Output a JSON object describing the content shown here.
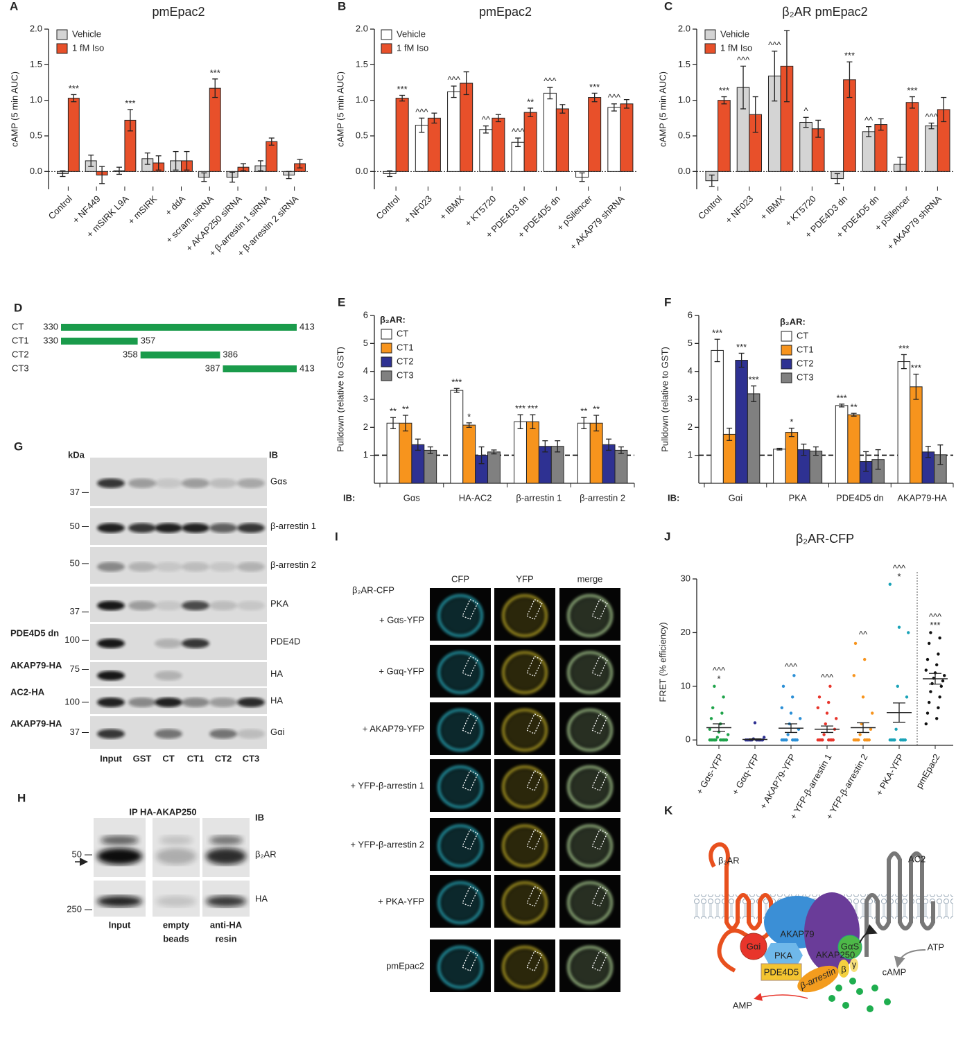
{
  "chart_data": [
    {
      "panel": "A",
      "type": "bar",
      "title": "pmEpac2",
      "y_label": "cAMP (5 min AUC)",
      "categories": [
        "Control",
        "+ NF449",
        "+ mSIRK L9A",
        "+ mSIRK",
        "+ ddA",
        "+ scram. siRNA",
        "+ AKAP250 siRNA",
        "+ β-arrestin 1 siRNA",
        "+ β-arrestin 2 siRNA"
      ],
      "ylim": [
        -0.25,
        2.0
      ],
      "yticks": [
        {
          "value": 0,
          "label": "0.0"
        },
        {
          "value": 0.5,
          "label": "0.5"
        },
        {
          "value": 1,
          "label": "1.0"
        },
        {
          "value": 1.5,
          "label": "1.5"
        },
        {
          "value": 2,
          "label": "2.0"
        }
      ],
      "reference_line": 0,
      "reference_style": "dotted",
      "series": [
        {
          "name": "Vehicle",
          "color": "#d4d4d4",
          "values": [
            -0.03,
            0.15,
            0.01,
            0.18,
            0.15,
            -0.08,
            -0.08,
            0.08,
            -0.05
          ],
          "errors": [
            0.04,
            0.08,
            0.05,
            0.08,
            0.13,
            0.06,
            0.07,
            0.07,
            0.05
          ],
          "annotations": [
            null,
            null,
            null,
            null,
            null,
            null,
            null,
            null,
            null
          ]
        },
        {
          "name": "1 fM Iso",
          "color": "#e8502a",
          "values": [
            1.03,
            -0.05,
            0.72,
            0.12,
            0.15,
            1.17,
            0.06,
            0.42,
            0.11
          ],
          "errors": [
            0.05,
            0.12,
            0.15,
            0.1,
            0.13,
            0.13,
            0.05,
            0.05,
            0.06
          ],
          "annotations": [
            "***",
            null,
            "***",
            null,
            null,
            "***",
            null,
            null,
            null
          ]
        }
      ]
    },
    {
      "panel": "B",
      "type": "bar",
      "title": "pmEpac2",
      "y_label": "cAMP (5 min AUC)",
      "categories": [
        "Control",
        "+ NF023",
        "+ IBMX",
        "+ KT5720",
        "+ PDE4D3 dn",
        "+ PDE4D5 dn",
        "+ pSilencer",
        "+ AKAP79 shRNA"
      ],
      "ylim": [
        -0.25,
        2.0
      ],
      "yticks": [
        {
          "value": 0,
          "label": "0.0"
        },
        {
          "value": 0.5,
          "label": "0.5"
        },
        {
          "value": 1,
          "label": "1.0"
        },
        {
          "value": 1.5,
          "label": "1.5"
        },
        {
          "value": 2,
          "label": "2.0"
        }
      ],
      "reference_line": 0,
      "reference_style": "dotted",
      "series": [
        {
          "name": "Vehicle",
          "color": "#ffffff",
          "values": [
            -0.03,
            0.65,
            1.12,
            0.59,
            0.41,
            1.1,
            -0.08,
            0.9
          ],
          "errors": [
            0.04,
            0.1,
            0.08,
            0.05,
            0.06,
            0.08,
            0.06,
            0.05
          ],
          "annotations": [
            null,
            "^^^",
            "^^^",
            "^^",
            "^^^",
            "^^^",
            null,
            "^^^"
          ]
        },
        {
          "name": "1 fM Iso",
          "color": "#e8502a",
          "values": [
            1.03,
            0.75,
            1.24,
            0.75,
            0.83,
            0.88,
            1.04,
            0.95
          ],
          "errors": [
            0.04,
            0.07,
            0.16,
            0.05,
            0.06,
            0.06,
            0.06,
            0.06
          ],
          "annotations": [
            "***",
            null,
            null,
            null,
            "**",
            null,
            "***",
            null
          ]
        }
      ]
    },
    {
      "panel": "C",
      "type": "bar",
      "title": "β₂AR pmEpac2",
      "y_label": "cAMP (5 min AUC)",
      "categories": [
        "Control",
        "+ NF023",
        "+ IBMX",
        "+ KT5720",
        "+ PDE4D3 dn",
        "+ PDE4D5 dn",
        "+ pSilencer",
        "+ AKAP79 shRNA"
      ],
      "ylim": [
        -0.25,
        2.0
      ],
      "yticks": [
        {
          "value": 0,
          "label": "0.0"
        },
        {
          "value": 0.5,
          "label": "0.5"
        },
        {
          "value": 1,
          "label": "1.0"
        },
        {
          "value": 1.5,
          "label": "1.5"
        },
        {
          "value": 2,
          "label": "2.0"
        }
      ],
      "reference_line": 0,
      "reference_style": "dotted",
      "series": [
        {
          "name": "Vehicle",
          "color": "#d4d4d4",
          "values": [
            -0.13,
            1.18,
            1.34,
            0.69,
            -0.1,
            0.56,
            0.1,
            0.64
          ],
          "errors": [
            0.08,
            0.3,
            0.35,
            0.07,
            0.07,
            0.07,
            0.1,
            0.04
          ],
          "annotations": [
            null,
            "^^^",
            "^^^",
            "^",
            null,
            "^^",
            null,
            "^^^"
          ]
        },
        {
          "name": "1 fM Iso",
          "color": "#e8502a",
          "values": [
            1.0,
            0.8,
            1.48,
            0.6,
            1.29,
            0.66,
            0.97,
            0.87
          ],
          "errors": [
            0.05,
            0.25,
            0.5,
            0.12,
            0.25,
            0.08,
            0.08,
            0.17
          ],
          "annotations": [
            "***",
            null,
            null,
            null,
            "***",
            null,
            "***",
            null
          ]
        }
      ]
    },
    {
      "panel": "E",
      "type": "bar",
      "y_label": "Pulldown (relative to GST)",
      "x_label": "IB:",
      "legend_title": "β₂AR:",
      "categories": [
        "Gαs",
        "HA-AC2",
        "β-arrestin 1",
        "β-arrestin 2"
      ],
      "ylim": [
        0,
        6
      ],
      "yticks": [
        1,
        2,
        3,
        4,
        5,
        6
      ],
      "reference_line": 1,
      "reference_style": "dashed",
      "series": [
        {
          "name": "CT",
          "color": "#ffffff",
          "values": [
            2.15,
            3.32,
            2.2,
            2.15
          ],
          "errors": [
            0.2,
            0.07,
            0.25,
            0.2
          ],
          "annotations": [
            "**",
            "***",
            "***",
            "**"
          ]
        },
        {
          "name": "CT1",
          "color": "#f7941d",
          "values": [
            2.15,
            2.08,
            2.2,
            2.15
          ],
          "errors": [
            0.28,
            0.08,
            0.25,
            0.28
          ],
          "annotations": [
            "**",
            "*",
            "***",
            "**"
          ]
        },
        {
          "name": "CT2",
          "color": "#2e3192",
          "values": [
            1.38,
            1.0,
            1.32,
            1.38
          ],
          "errors": [
            0.2,
            0.3,
            0.2,
            0.2
          ],
          "annotations": [
            null,
            null,
            null,
            null
          ]
        },
        {
          "name": "CT3",
          "color": "#808080",
          "values": [
            1.18,
            1.12,
            1.32,
            1.18
          ],
          "errors": [
            0.12,
            0.07,
            0.2,
            0.12
          ],
          "annotations": [
            null,
            null,
            null,
            null
          ]
        }
      ]
    },
    {
      "panel": "F",
      "type": "bar",
      "y_label": "Pulldown (relative to GST)",
      "x_label": "IB:",
      "legend_title": "β₂AR:",
      "categories": [
        "Gαi",
        "PKA",
        "PDE4D5 dn",
        "AKAP79-HA"
      ],
      "ylim": [
        0,
        6
      ],
      "yticks": [
        1,
        2,
        3,
        4,
        5,
        6
      ],
      "reference_line": 1,
      "reference_style": "dashed",
      "series": [
        {
          "name": "CT",
          "color": "#ffffff",
          "values": [
            4.75,
            1.22,
            2.78,
            4.35
          ],
          "errors": [
            0.4,
            0.03,
            0.05,
            0.25
          ],
          "annotations": [
            "***",
            null,
            "***",
            "***"
          ]
        },
        {
          "name": "CT1",
          "color": "#f7941d",
          "values": [
            1.75,
            1.82,
            2.45,
            3.45
          ],
          "errors": [
            0.22,
            0.15,
            0.05,
            0.45
          ],
          "annotations": [
            null,
            "*",
            "**",
            "***"
          ]
        },
        {
          "name": "CT2",
          "color": "#2e3192",
          "values": [
            4.4,
            1.2,
            0.78,
            1.12
          ],
          "errors": [
            0.25,
            0.2,
            0.35,
            0.2
          ],
          "annotations": [
            "***",
            null,
            null,
            null
          ]
        },
        {
          "name": "CT3",
          "color": "#808080",
          "values": [
            3.2,
            1.15,
            0.85,
            1.02
          ],
          "errors": [
            0.28,
            0.15,
            0.35,
            0.35
          ],
          "annotations": [
            "***",
            null,
            null,
            null
          ]
        }
      ]
    },
    {
      "panel": "J",
      "type": "strip",
      "title": "β₂AR-CFP",
      "y_label": "FRET (% efficiency)",
      "categories": [
        "+ Gαs-YFP",
        "+ Gαq-YFP",
        "+ AKAP79-YFP",
        "+ YFP-β-arrestin 1",
        "+ YFP-β-arrestin 2",
        "+ PKA-YFP",
        "pmEpac2"
      ],
      "colors": [
        "#1fa34a",
        "#2e3192",
        "#2b8fd6",
        "#e8352b",
        "#f7941d",
        "#1aa3b8",
        "#111111"
      ],
      "points": [
        [
          0,
          0,
          0,
          0,
          0,
          0,
          0,
          0,
          0,
          0,
          0.5,
          1,
          1.5,
          2,
          3,
          4,
          5,
          6,
          8,
          10
        ],
        [
          0,
          0,
          0,
          0,
          0,
          0,
          0,
          0,
          0,
          0,
          0.2,
          0.5,
          3.2
        ],
        [
          0,
          0,
          0,
          0,
          0,
          0,
          0,
          0,
          1,
          2,
          3,
          4,
          5,
          6,
          8,
          10,
          12
        ],
        [
          0,
          0,
          0,
          0,
          0,
          0,
          0,
          0,
          1,
          2,
          3,
          4,
          5,
          6,
          7,
          8,
          10
        ],
        [
          0,
          0,
          0,
          0,
          0,
          0,
          0,
          0,
          1,
          2,
          3,
          5,
          8,
          12,
          15,
          18
        ],
        [
          0,
          0,
          0,
          0,
          0,
          0,
          0,
          0,
          2,
          8,
          10,
          20,
          21,
          29
        ],
        [
          3,
          4,
          5,
          6,
          7,
          8,
          9,
          10,
          10.5,
          11,
          11.5,
          12,
          12.5,
          13,
          14,
          15,
          16,
          18,
          19,
          20
        ]
      ],
      "means": [
        2.3,
        0.1,
        2.2,
        2.0,
        2.3,
        5.1,
        11.4
      ],
      "errors": [
        0.7,
        0.1,
        0.8,
        0.6,
        0.9,
        1.8,
        1.0
      ],
      "annotations_top": [
        "^^^",
        null,
        "^^^",
        "^^^",
        "^^",
        "^^^",
        "^^^"
      ],
      "annotations_bottom": [
        "*",
        null,
        null,
        null,
        null,
        "*",
        "***"
      ],
      "ylim": [
        -1,
        30
      ],
      "yticks": [
        0,
        10,
        20,
        30
      ],
      "divider_before_last": true
    }
  ],
  "panel_d": {
    "panel": "D",
    "xlim": [
      330,
      413
    ],
    "color": "#1a9b4b",
    "rows": [
      {
        "label": "CT",
        "start": 330,
        "end": 413
      },
      {
        "label": "CT1",
        "start": 330,
        "end": 357
      },
      {
        "label": "CT2",
        "start": 358,
        "end": 386
      },
      {
        "label": "CT3",
        "start": 387,
        "end": 413
      }
    ]
  },
  "panel_g": {
    "panel": "G",
    "unit_label": "kDa",
    "ib_label": "IB",
    "rows": [
      {
        "marker": 37,
        "target": "Gαs",
        "label": null
      },
      {
        "marker": 50,
        "target": "β-arrestin 1",
        "label": null
      },
      {
        "marker": 50,
        "target": "β-arrestin 2",
        "label": null
      },
      {
        "marker": 37,
        "target": "PKA",
        "label": null
      },
      {
        "marker": 100,
        "target": "PDE4D",
        "label": "PDE4D5 dn"
      },
      {
        "marker": 75,
        "target": "HA",
        "label": "AKAP79-HA"
      },
      {
        "marker": 100,
        "target": "HA",
        "label": "AC2-HA"
      },
      {
        "marker": 37,
        "target": "Gαi",
        "label": "AKAP79-HA"
      }
    ],
    "lanes": [
      "Input",
      "GST",
      "CT",
      "CT1",
      "CT2",
      "CT3"
    ]
  },
  "panel_h": {
    "panel": "H",
    "title": "IP HA-AKAP250",
    "ib_label": "IB",
    "rows": [
      {
        "marker": 50,
        "target": "β₂AR"
      },
      {
        "marker": 250,
        "target": "HA"
      }
    ],
    "lanes": [
      [
        "Input"
      ],
      [
        "empty",
        "beads"
      ],
      [
        "anti-HA",
        "resin"
      ]
    ]
  },
  "panel_i": {
    "panel": "I",
    "columns": [
      "CFP",
      "YFP",
      "merge"
    ],
    "header": "β₂AR-CFP",
    "rows": [
      "+ Gαs-YFP",
      "+ Gαq-YFP",
      "+ AKAP79-YFP",
      "+ YFP-β-arrestin 1",
      "+ YFP-β-arrestin 2",
      "+ PKA-YFP",
      "pmEpac2"
    ]
  },
  "panel_k": {
    "panel": "K",
    "labels": {
      "receptor": "β₂AR",
      "cyclase": "AC2",
      "akap79": "AKAP79",
      "gai": "Gαi",
      "pka": "PKA",
      "akap250": "AKAP250",
      "gas": "GαS",
      "beta": "β",
      "gamma": "γ",
      "pde": "PDE4D5",
      "arrestin": "β-arrestin",
      "atp": "ATP",
      "camp": "cAMP",
      "amp": "AMP"
    }
  }
}
